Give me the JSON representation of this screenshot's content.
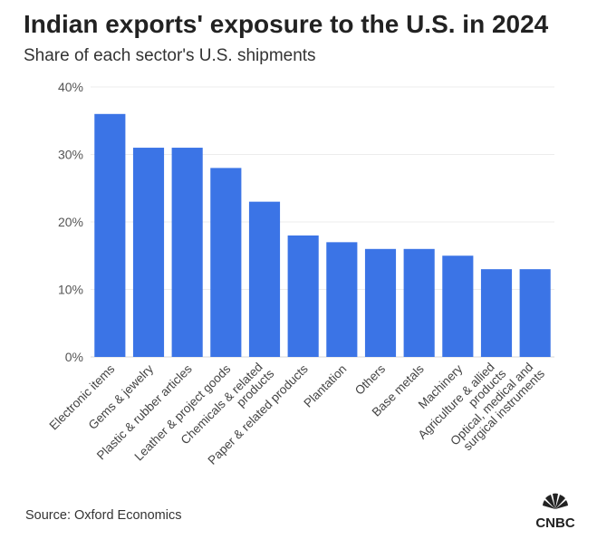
{
  "chart_data": {
    "type": "bar",
    "title": "Indian exports' exposure to the U.S. in 2024",
    "subtitle": "Share of each sector's U.S. shipments",
    "categories": [
      "Electronic items",
      "Gems & jewelry",
      "Plastic & rubber articles",
      "Leather & project goods",
      "Chemicals & related products",
      "Paper & related products",
      "Plantation",
      "Others",
      "Base metals",
      "Machinery",
      "Agriculture & allied products",
      "Optical, medical and surgical instruments"
    ],
    "values": [
      36,
      31,
      31,
      28,
      23,
      18,
      17,
      16,
      16,
      15,
      13,
      13
    ],
    "color": "#3b74e6",
    "ylim": [
      0,
      40
    ],
    "yticks": [
      {
        "value": 0,
        "label": "0%"
      },
      {
        "value": 10,
        "label": "10%"
      },
      {
        "value": 20,
        "label": "20%"
      },
      {
        "value": 30,
        "label": "30%"
      },
      {
        "value": 40,
        "label": "40%"
      }
    ],
    "grid": true,
    "source": "Source: Oxford Economics",
    "logo_text": "CNBC"
  }
}
